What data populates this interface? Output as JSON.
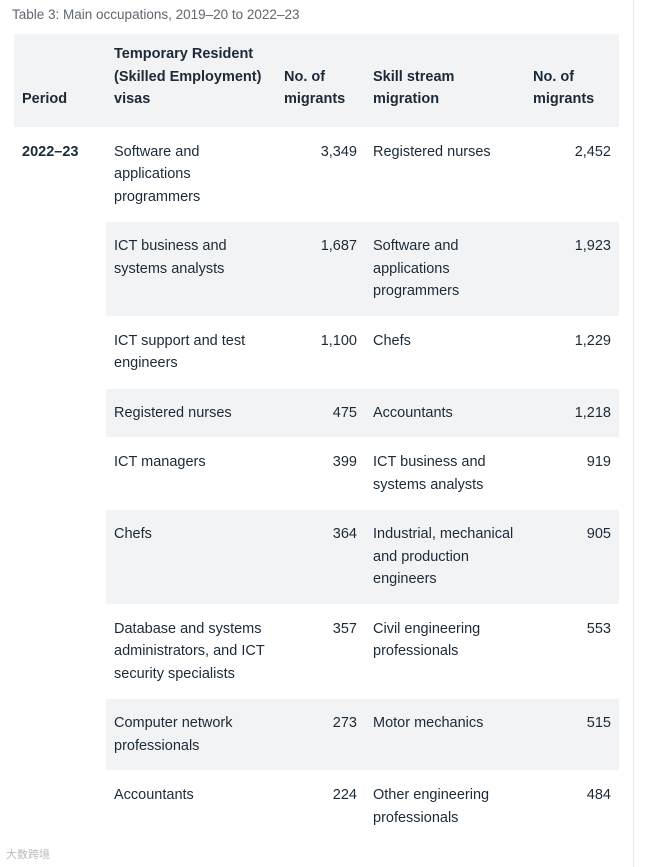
{
  "caption": "Table 3: Main occupations, 2019–20 to 2022–23",
  "headers": {
    "period": "Period",
    "temp_visas": "Temporary Resident (Skilled Employment) visas",
    "num1": "No. of migrants",
    "skill_stream": "Skill stream migration",
    "num2": "No. of migrants"
  },
  "period": "2022–23",
  "rows": [
    {
      "occ1": "Software and applications programmers",
      "n1": "3,349",
      "occ2": "Registered nurses",
      "n2": "2,452"
    },
    {
      "occ1": "ICT business and systems analysts",
      "n1": "1,687",
      "occ2": "Software and applications programmers",
      "n2": "1,923"
    },
    {
      "occ1": "ICT support and test engineers",
      "n1": "1,100",
      "occ2": "Chefs",
      "n2": "1,229"
    },
    {
      "occ1": "Registered nurses",
      "n1": "475",
      "occ2": "Accountants",
      "n2": "1,218"
    },
    {
      "occ1": "ICT managers",
      "n1": "399",
      "occ2": "ICT business and systems analysts",
      "n2": "919"
    },
    {
      "occ1": "Chefs",
      "n1": "364",
      "occ2": "Industrial, mechanical and production engineers",
      "n2": "905"
    },
    {
      "occ1": "Database and systems administrators, and ICT security specialists",
      "n1": "357",
      "occ2": "Civil engineering professionals",
      "n2": "553"
    },
    {
      "occ1": "Computer network professionals",
      "n1": "273",
      "occ2": "Motor mechanics",
      "n2": "515"
    },
    {
      "occ1": "Accountants",
      "n1": "224",
      "occ2": "Other engineering professionals",
      "n2": "484"
    }
  ],
  "watermark": "大数跨境"
}
